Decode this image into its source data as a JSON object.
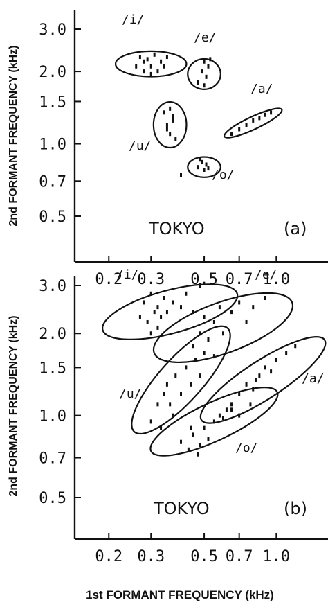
{
  "chart_data": [
    {
      "type": "scatter",
      "panel_label": "(a)",
      "annotation": "TOKYO",
      "xlabel": "1st FORMANT FREQUENCY (kHz)",
      "ylabel": "2nd FORMANT FREQUENCY (kHz)",
      "x_scale": "log",
      "y_scale": "log",
      "x_ticks": [
        {
          "value": 0.2,
          "label": "0.2"
        },
        {
          "value": 0.3,
          "label": "0.3"
        },
        {
          "value": 0.5,
          "label": "0.5"
        },
        {
          "value": 0.7,
          "label": "0.7"
        },
        {
          "value": 1.0,
          "label": "1.0"
        }
      ],
      "y_ticks": [
        {
          "value": 0.5,
          "label": "0.5"
        },
        {
          "value": 0.7,
          "label": "0.7"
        },
        {
          "value": 1.0,
          "label": "1.0"
        },
        {
          "value": 1.5,
          "label": "1.5"
        },
        {
          "value": 2.0,
          "label": "2.0"
        },
        {
          "value": 3.0,
          "label": "3.0"
        }
      ],
      "xlim": [
        0.15,
        1.6
      ],
      "ylim": [
        0.4,
        3.6
      ],
      "grid": false,
      "series": [
        {
          "name": "/i/",
          "ellipse": {
            "cx": 0.3,
            "cy": 2.15,
            "rx_frac": 0.28,
            "ry_frac": 0.1,
            "angle": 0
          },
          "points": [
            [
              0.26,
              2.1
            ],
            [
              0.27,
              2.3
            ],
            [
              0.28,
              2.0
            ],
            [
              0.29,
              2.25
            ],
            [
              0.3,
              2.1
            ],
            [
              0.31,
              2.35
            ],
            [
              0.32,
              2.0
            ],
            [
              0.33,
              2.2
            ],
            [
              0.34,
              2.1
            ],
            [
              0.35,
              2.3
            ],
            [
              0.3,
              1.95
            ],
            [
              0.28,
              2.2
            ]
          ]
        },
        {
          "name": "/e/",
          "ellipse": {
            "cx": 0.5,
            "cy": 1.95,
            "rx_frac": 0.13,
            "ry_frac": 0.12,
            "angle": 0
          },
          "points": [
            [
              0.47,
              1.8
            ],
            [
              0.49,
              2.0
            ],
            [
              0.5,
              2.2
            ],
            [
              0.51,
              1.9
            ],
            [
              0.52,
              2.1
            ],
            [
              0.5,
              1.75
            ],
            [
              0.53,
              2.25
            ]
          ]
        },
        {
          "name": "/a/",
          "ellipse": {
            "cx": 0.8,
            "cy": 1.22,
            "rx_frac": 0.25,
            "ry_frac": 0.05,
            "angle": -25
          },
          "points": [
            [
              0.65,
              1.1
            ],
            [
              0.7,
              1.15
            ],
            [
              0.75,
              1.2
            ],
            [
              0.8,
              1.25
            ],
            [
              0.85,
              1.28
            ],
            [
              0.9,
              1.32
            ],
            [
              0.95,
              1.35
            ]
          ]
        },
        {
          "name": "/u/",
          "ellipse": {
            "cx": 0.36,
            "cy": 1.2,
            "rx_frac": 0.13,
            "ry_frac": 0.18,
            "angle": 0
          },
          "points": [
            [
              0.34,
              1.35
            ],
            [
              0.35,
              1.2
            ],
            [
              0.36,
              1.1
            ],
            [
              0.37,
              1.25
            ],
            [
              0.38,
              1.05
            ],
            [
              0.36,
              1.4
            ],
            [
              0.35,
              1.15
            ],
            [
              0.37,
              1.3
            ]
          ]
        },
        {
          "name": "/o/",
          "ellipse": {
            "cx": 0.5,
            "cy": 0.8,
            "rx_frac": 0.13,
            "ry_frac": 0.08,
            "angle": 0
          },
          "points": [
            [
              0.47,
              0.8
            ],
            [
              0.49,
              0.84
            ],
            [
              0.5,
              0.78
            ],
            [
              0.51,
              0.82
            ],
            [
              0.48,
              0.86
            ],
            [
              0.52,
              0.79
            ],
            [
              0.4,
              0.74
            ]
          ]
        }
      ]
    },
    {
      "type": "scatter",
      "panel_label": "(b)",
      "annotation": "TOKYO",
      "xlabel": "1st FORMANT FREQUENCY (kHz)",
      "ylabel": "2nd FORMANT FREQUENCY (kHz)",
      "x_scale": "log",
      "y_scale": "log",
      "x_ticks": [
        {
          "value": 0.2,
          "label": "0.2"
        },
        {
          "value": 0.3,
          "label": "0.3"
        },
        {
          "value": 0.5,
          "label": "0.5"
        },
        {
          "value": 0.7,
          "label": "0.7"
        },
        {
          "value": 1.0,
          "label": "1.0"
        }
      ],
      "y_ticks": [
        {
          "value": 0.5,
          "label": "0.5"
        },
        {
          "value": 0.7,
          "label": "0.7"
        },
        {
          "value": 1.0,
          "label": "1.0"
        },
        {
          "value": 1.5,
          "label": "1.5"
        },
        {
          "value": 2.0,
          "label": "2.0"
        },
        {
          "value": 3.0,
          "label": "3.0"
        }
      ],
      "xlim": [
        0.15,
        1.6
      ],
      "ylim": [
        0.4,
        3.6
      ],
      "grid": false,
      "series": [
        {
          "name": "/i/",
          "ellipse": {
            "cx": 0.36,
            "cy": 2.4,
            "rx_frac": 0.55,
            "ry_frac": 0.17,
            "angle": -15
          },
          "points": [
            [
              0.27,
              2.3
            ],
            [
              0.28,
              2.6
            ],
            [
              0.29,
              2.2
            ],
            [
              0.3,
              2.8
            ],
            [
              0.31,
              2.4
            ],
            [
              0.32,
              2.5
            ],
            [
              0.33,
              2.3
            ],
            [
              0.34,
              2.7
            ],
            [
              0.35,
              2.4
            ],
            [
              0.37,
              2.6
            ],
            [
              0.4,
              2.5
            ],
            [
              0.42,
              2.8
            ],
            [
              0.45,
              2.4
            ],
            [
              0.48,
              3.0
            ],
            [
              0.3,
              2.0
            ],
            [
              0.32,
              2.1
            ]
          ]
        },
        {
          "name": "/e/",
          "ellipse": {
            "cx": 0.6,
            "cy": 2.1,
            "rx_frac": 0.58,
            "ry_frac": 0.2,
            "angle": -20
          },
          "points": [
            [
              0.45,
              1.8
            ],
            [
              0.48,
              2.0
            ],
            [
              0.5,
              2.3
            ],
            [
              0.52,
              1.9
            ],
            [
              0.55,
              2.2
            ],
            [
              0.58,
              2.5
            ],
            [
              0.6,
              2.0
            ],
            [
              0.65,
              2.4
            ],
            [
              0.7,
              2.6
            ],
            [
              0.75,
              2.2
            ],
            [
              0.8,
              2.5
            ],
            [
              0.9,
              2.7
            ],
            [
              0.5,
              1.7
            ],
            [
              0.55,
              1.65
            ]
          ]
        },
        {
          "name": "/u/",
          "ellipse": {
            "cx": 0.4,
            "cy": 1.35,
            "rx_frac": 0.55,
            "ry_frac": 0.17,
            "angle": -48
          },
          "points": [
            [
              0.3,
              0.95
            ],
            [
              0.32,
              1.1
            ],
            [
              0.33,
              0.9
            ],
            [
              0.35,
              1.3
            ],
            [
              0.36,
              1.1
            ],
            [
              0.38,
              1.4
            ],
            [
              0.4,
              1.2
            ],
            [
              0.42,
              1.5
            ],
            [
              0.44,
              1.3
            ],
            [
              0.46,
              1.6
            ],
            [
              0.48,
              1.4
            ],
            [
              0.5,
              1.7
            ],
            [
              0.34,
              1.2
            ],
            [
              0.37,
              1.0
            ]
          ]
        },
        {
          "name": "/a/",
          "ellipse": {
            "cx": 0.88,
            "cy": 1.35,
            "rx_frac": 0.58,
            "ry_frac": 0.15,
            "angle": -33
          },
          "points": [
            [
              0.65,
              1.05
            ],
            [
              0.7,
              1.2
            ],
            [
              0.75,
              1.3
            ],
            [
              0.8,
              1.25
            ],
            [
              0.85,
              1.4
            ],
            [
              0.9,
              1.5
            ],
            [
              0.95,
              1.45
            ],
            [
              1.0,
              1.6
            ],
            [
              1.1,
              1.7
            ],
            [
              1.2,
              1.8
            ],
            [
              0.78,
              1.1
            ],
            [
              0.82,
              1.35
            ]
          ]
        },
        {
          "name": "/o/",
          "ellipse": {
            "cx": 0.55,
            "cy": 0.95,
            "rx_frac": 0.55,
            "ry_frac": 0.15,
            "angle": -25
          },
          "points": [
            [
              0.4,
              0.8
            ],
            [
              0.43,
              0.75
            ],
            [
              0.45,
              0.85
            ],
            [
              0.48,
              0.78
            ],
            [
              0.5,
              0.9
            ],
            [
              0.52,
              0.82
            ],
            [
              0.55,
              0.95
            ],
            [
              0.58,
              1.0
            ],
            [
              0.6,
              0.98
            ],
            [
              0.62,
              1.05
            ],
            [
              0.65,
              1.1
            ],
            [
              0.7,
              1.0
            ],
            [
              0.47,
              0.72
            ],
            [
              0.44,
              0.9
            ]
          ]
        }
      ]
    }
  ]
}
